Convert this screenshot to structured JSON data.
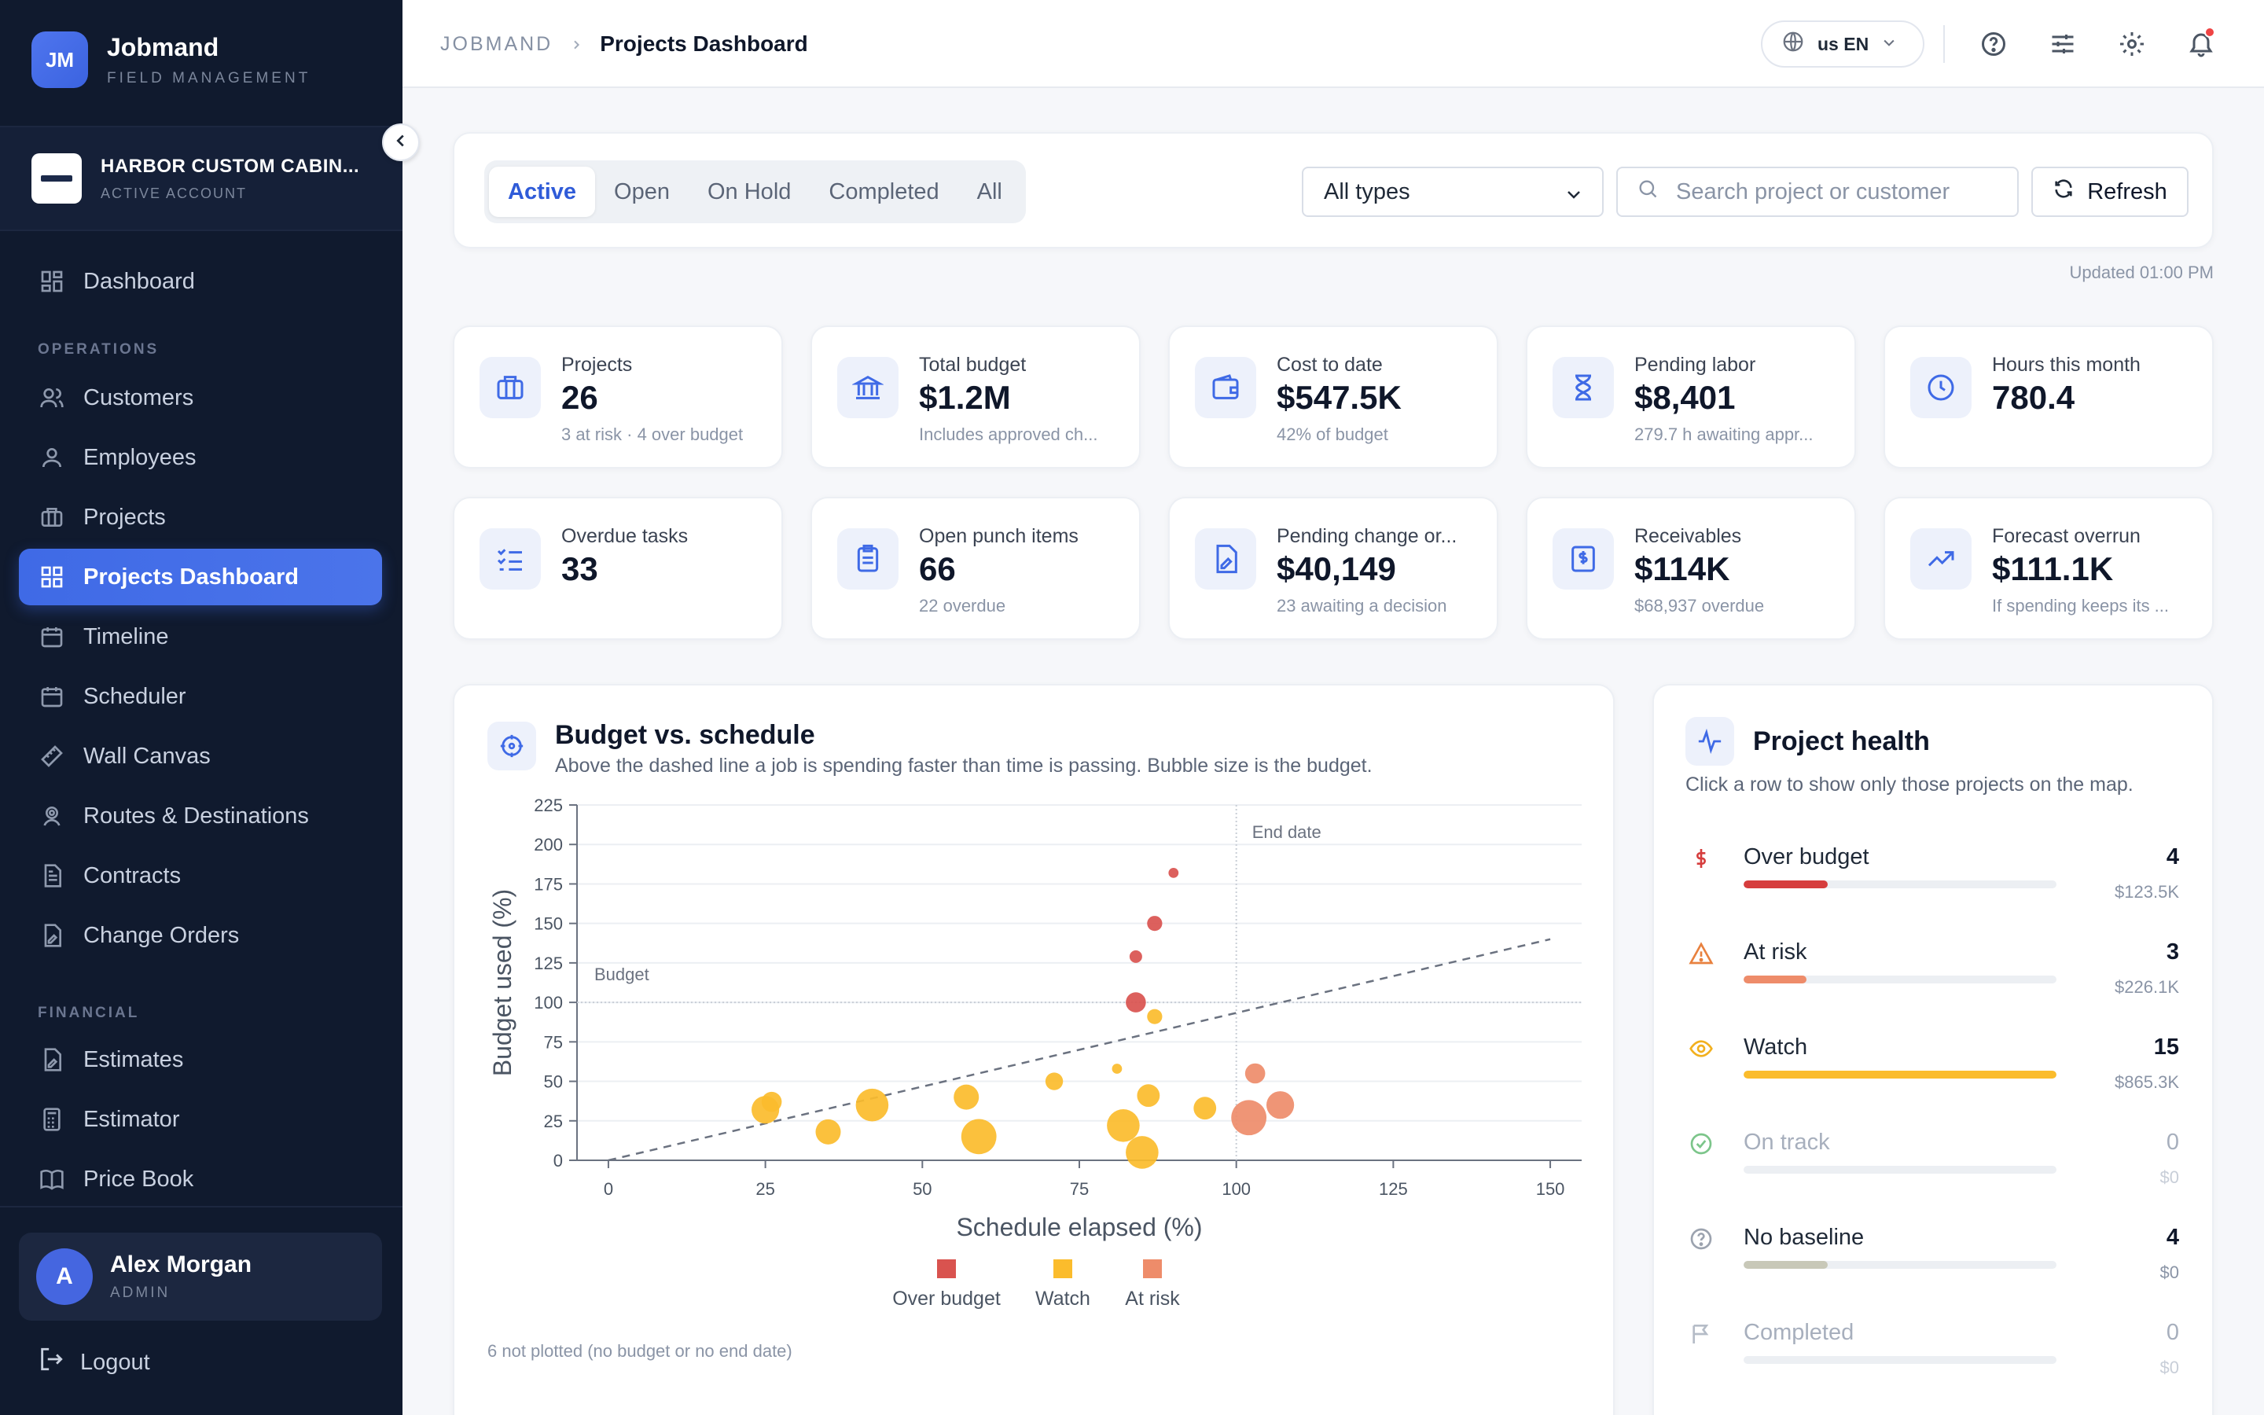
{
  "brand": {
    "initials": "JM",
    "name": "Jobmand",
    "subtitle": "FIELD MANAGEMENT"
  },
  "account": {
    "name": "HARBOR CUSTOM CABIN...",
    "status": "ACTIVE ACCOUNT"
  },
  "sidebar": {
    "dashboard": "Dashboard",
    "operations_label": "OPERATIONS",
    "operations": [
      "Customers",
      "Employees",
      "Projects",
      "Projects Dashboard",
      "Timeline",
      "Scheduler",
      "Wall Canvas",
      "Routes & Destinations",
      "Contracts",
      "Change Orders"
    ],
    "financial_label": "FINANCIAL",
    "financial": [
      "Estimates",
      "Estimator",
      "Price Book"
    ],
    "active_item": "Projects Dashboard"
  },
  "user": {
    "initial": "A",
    "name": "Alex Morgan",
    "role": "ADMIN",
    "logout": "Logout"
  },
  "topbar": {
    "breadcrumb_root": "JOBMAND",
    "breadcrumb_current": "Projects Dashboard",
    "language": "us EN",
    "icons": [
      "help-icon",
      "sliders-icon",
      "gear-icon",
      "bell-icon"
    ]
  },
  "filters": {
    "tabs": [
      "Active",
      "Open",
      "On Hold",
      "Completed",
      "All"
    ],
    "active_tab": "Active",
    "type_select": "All types",
    "search_placeholder": "Search project or customer",
    "refresh_label": "Refresh",
    "updated": "Updated 01:00 PM"
  },
  "kpis": [
    {
      "icon": "briefcase-icon",
      "label": "Projects",
      "value": "26",
      "sub": "3 at risk · 4 over budget"
    },
    {
      "icon": "bank-icon",
      "label": "Total budget",
      "value": "$1.2M",
      "sub": "Includes approved ch..."
    },
    {
      "icon": "wallet-icon",
      "label": "Cost to date",
      "value": "$547.5K",
      "sub": "42% of budget"
    },
    {
      "icon": "hourglass-icon",
      "label": "Pending labor",
      "value": "$8,401",
      "sub": "279.7 h awaiting appr..."
    },
    {
      "icon": "clock-icon",
      "label": "Hours this month",
      "value": "780.4",
      "sub": ""
    },
    {
      "icon": "checklist-icon",
      "label": "Overdue tasks",
      "value": "33",
      "sub": ""
    },
    {
      "icon": "clipboard-icon",
      "label": "Open punch items",
      "value": "66",
      "sub": "22 overdue"
    },
    {
      "icon": "file-edit-icon",
      "label": "Pending change or...",
      "value": "$40,149",
      "sub": "23 awaiting a decision"
    },
    {
      "icon": "invoice-dollar-icon",
      "label": "Receivables",
      "value": "$114K",
      "sub": "$68,937 overdue"
    },
    {
      "icon": "trending-up-icon",
      "label": "Forecast overrun",
      "value": "$111.1K",
      "sub": "If spending keeps its ..."
    }
  ],
  "chart_card": {
    "title": "Budget vs. schedule",
    "subtitle": "Above the dashed line a job is spending faster than time is passing. Bubble size is the budget.",
    "footnote": "6 not plotted (no budget or no end date)"
  },
  "chart_data": {
    "type": "scatter",
    "xlabel": "Schedule elapsed (%)",
    "ylabel": "Budget used (%)",
    "xlim": [
      -5,
      155
    ],
    "ylim": [
      0,
      225
    ],
    "xticks": [
      0,
      25,
      50,
      75,
      100,
      125,
      150
    ],
    "yticks": [
      0,
      25,
      50,
      75,
      100,
      125,
      150,
      175,
      200,
      225
    ],
    "reference_lines": [
      {
        "orientation": "horizontal",
        "value": 100,
        "label": "Budget"
      },
      {
        "orientation": "vertical",
        "value": 100,
        "label": "End date"
      },
      {
        "orientation": "diagonal",
        "from": [
          0,
          0
        ],
        "to": [
          150,
          140
        ]
      }
    ],
    "grid": true,
    "legend_position": "bottom-center",
    "series": [
      {
        "name": "Over budget",
        "color": "#d9534f",
        "points": [
          {
            "x": 90,
            "y": 182,
            "size": 4
          },
          {
            "x": 87,
            "y": 150,
            "size": 6
          },
          {
            "x": 84,
            "y": 129,
            "size": 5
          },
          {
            "x": 84,
            "y": 100,
            "size": 8
          }
        ]
      },
      {
        "name": "Watch",
        "color": "#fbbc2c",
        "points": [
          {
            "x": 25,
            "y": 32,
            "size": 11
          },
          {
            "x": 26,
            "y": 37,
            "size": 8
          },
          {
            "x": 35,
            "y": 18,
            "size": 10
          },
          {
            "x": 42,
            "y": 35,
            "size": 13
          },
          {
            "x": 57,
            "y": 40,
            "size": 10
          },
          {
            "x": 59,
            "y": 15,
            "size": 14
          },
          {
            "x": 71,
            "y": 50,
            "size": 7
          },
          {
            "x": 81,
            "y": 58,
            "size": 4
          },
          {
            "x": 82,
            "y": 22,
            "size": 13
          },
          {
            "x": 85,
            "y": 5,
            "size": 13
          },
          {
            "x": 86,
            "y": 41,
            "size": 9
          },
          {
            "x": 87,
            "y": 91,
            "size": 6
          },
          {
            "x": 95,
            "y": 33,
            "size": 9
          }
        ]
      },
      {
        "name": "At risk",
        "color": "#ee8c6a",
        "points": [
          {
            "x": 103,
            "y": 55,
            "size": 8
          },
          {
            "x": 102,
            "y": 27,
            "size": 14
          },
          {
            "x": 107,
            "y": 35,
            "size": 11
          }
        ]
      }
    ]
  },
  "health": {
    "title": "Project health",
    "subtitle": "Click a row to show only those projects on the map.",
    "rows": [
      {
        "icon": "dollar-icon",
        "label": "Over budget",
        "count": "4",
        "amount": "$123.5K",
        "fraction": 0.27,
        "color": "#d63d3d",
        "dim": false
      },
      {
        "icon": "warning-icon",
        "label": "At risk",
        "count": "3",
        "amount": "$226.1K",
        "fraction": 0.2,
        "color": "#ee8c6a",
        "dim": false
      },
      {
        "icon": "eye-icon",
        "label": "Watch",
        "count": "15",
        "amount": "$865.3K",
        "fraction": 1.0,
        "color": "#fbbc2c",
        "dim": false
      },
      {
        "icon": "check-circle-icon",
        "label": "On track",
        "count": "0",
        "amount": "$0",
        "fraction": 0,
        "color": "#4caf50",
        "dim": true
      },
      {
        "icon": "question-circle-icon",
        "label": "No baseline",
        "count": "4",
        "amount": "$0",
        "fraction": 0.27,
        "color": "#c8c8b8",
        "dim": false
      },
      {
        "icon": "flag-icon",
        "label": "Completed",
        "count": "0",
        "amount": "$0",
        "fraction": 0,
        "color": "#9ca3af",
        "dim": true
      }
    ]
  }
}
